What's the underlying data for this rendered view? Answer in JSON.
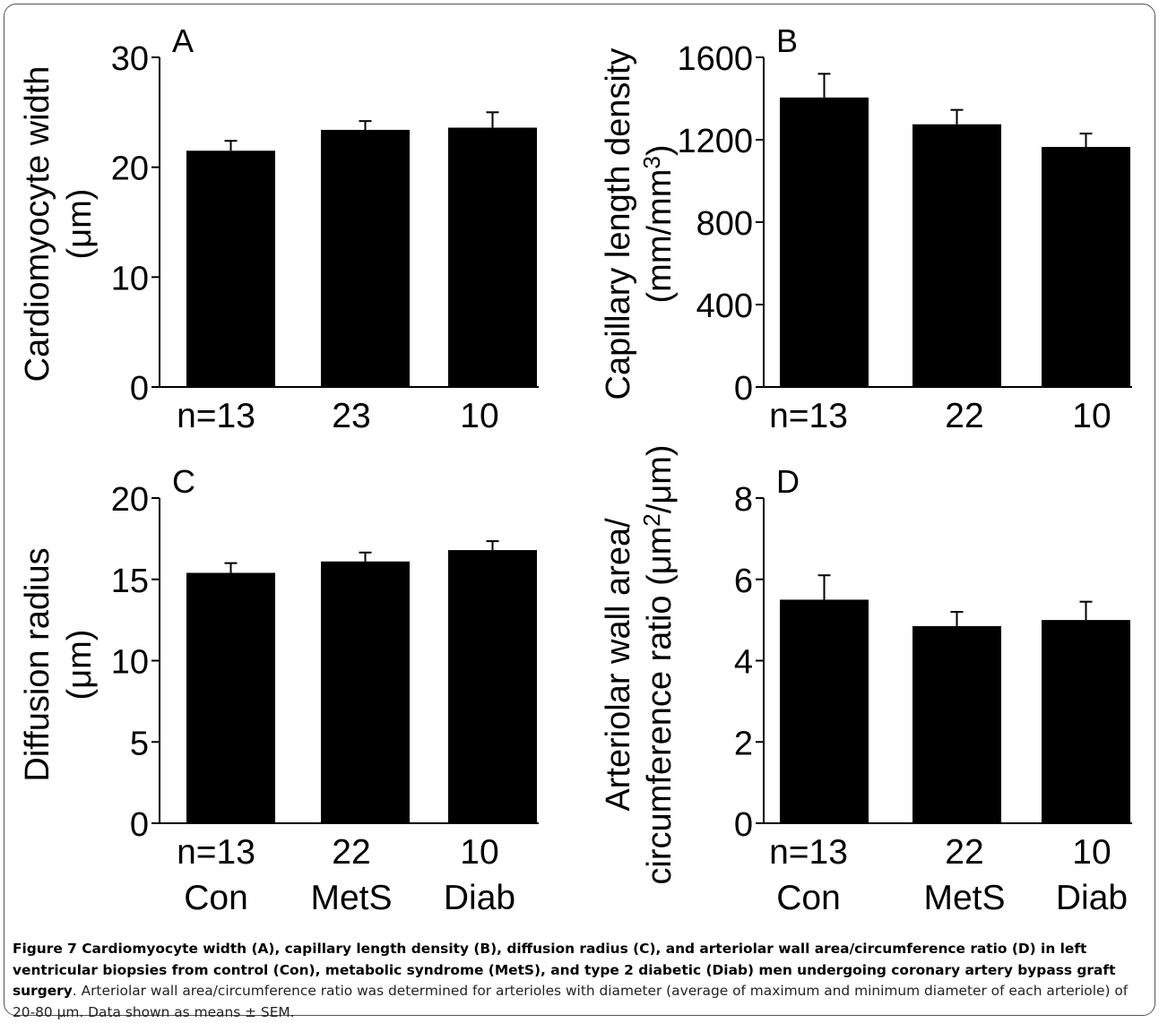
{
  "chart_data": [
    {
      "panel": "A",
      "type": "bar",
      "categories": [
        "n=13",
        "23",
        "10"
      ],
      "values": [
        21.5,
        23.4,
        23.6
      ],
      "errors": [
        0.9,
        0.8,
        1.4
      ],
      "ylabel_lines": [
        "Cardiomyocyte width",
        "(μm)"
      ],
      "ylim": [
        0,
        30
      ],
      "yticks": [
        0,
        10,
        20,
        30
      ]
    },
    {
      "panel": "B",
      "type": "bar",
      "categories": [
        "n=13",
        "22",
        "10"
      ],
      "values": [
        1405,
        1275,
        1165
      ],
      "errors": [
        115,
        70,
        65
      ],
      "ylabel_lines": [
        "Capillary length density",
        "(mm/mm3)"
      ],
      "ylim": [
        0,
        1600
      ],
      "yticks": [
        0,
        400,
        800,
        1200,
        1600
      ]
    },
    {
      "panel": "C",
      "type": "bar",
      "categories": [
        "n=13",
        "22",
        "10"
      ],
      "group_labels": [
        "Con",
        "MetS",
        "Diab"
      ],
      "values": [
        15.4,
        16.1,
        16.8
      ],
      "errors": [
        0.6,
        0.55,
        0.55
      ],
      "ylabel_lines": [
        "Diffusion radius",
        "(μm)"
      ],
      "ylim": [
        0,
        20
      ],
      "yticks": [
        0,
        5,
        10,
        15,
        20
      ]
    },
    {
      "panel": "D",
      "type": "bar",
      "categories": [
        "n=13",
        "22",
        "10"
      ],
      "group_labels": [
        "Con",
        "MetS",
        "Diab"
      ],
      "values": [
        5.5,
        4.85,
        5.0
      ],
      "errors": [
        0.6,
        0.35,
        0.45
      ],
      "ylabel_lines": [
        "Arteriolar wall area/",
        "circumference ratio (μm2/μm)"
      ],
      "ylim": [
        0,
        8
      ],
      "yticks": [
        0,
        2,
        4,
        6,
        8
      ]
    }
  ],
  "caption": {
    "bold": "Figure 7 Cardiomyocyte width (A), capillary length density (B), diffusion radius (C), and arteriolar wall area/circumference ratio (D) in left ventricular biopsies from control (Con), metabolic syndrome (MetS), and type 2 diabetic (Diab) men undergoing coronary artery bypass graft surgery",
    "normal": ". Arteriolar wall area/circumference ratio was determined for arterioles with diameter (average of maximum and minimum diameter of each arteriole) of 20-80 μm. Data shown as means ± SEM."
  }
}
